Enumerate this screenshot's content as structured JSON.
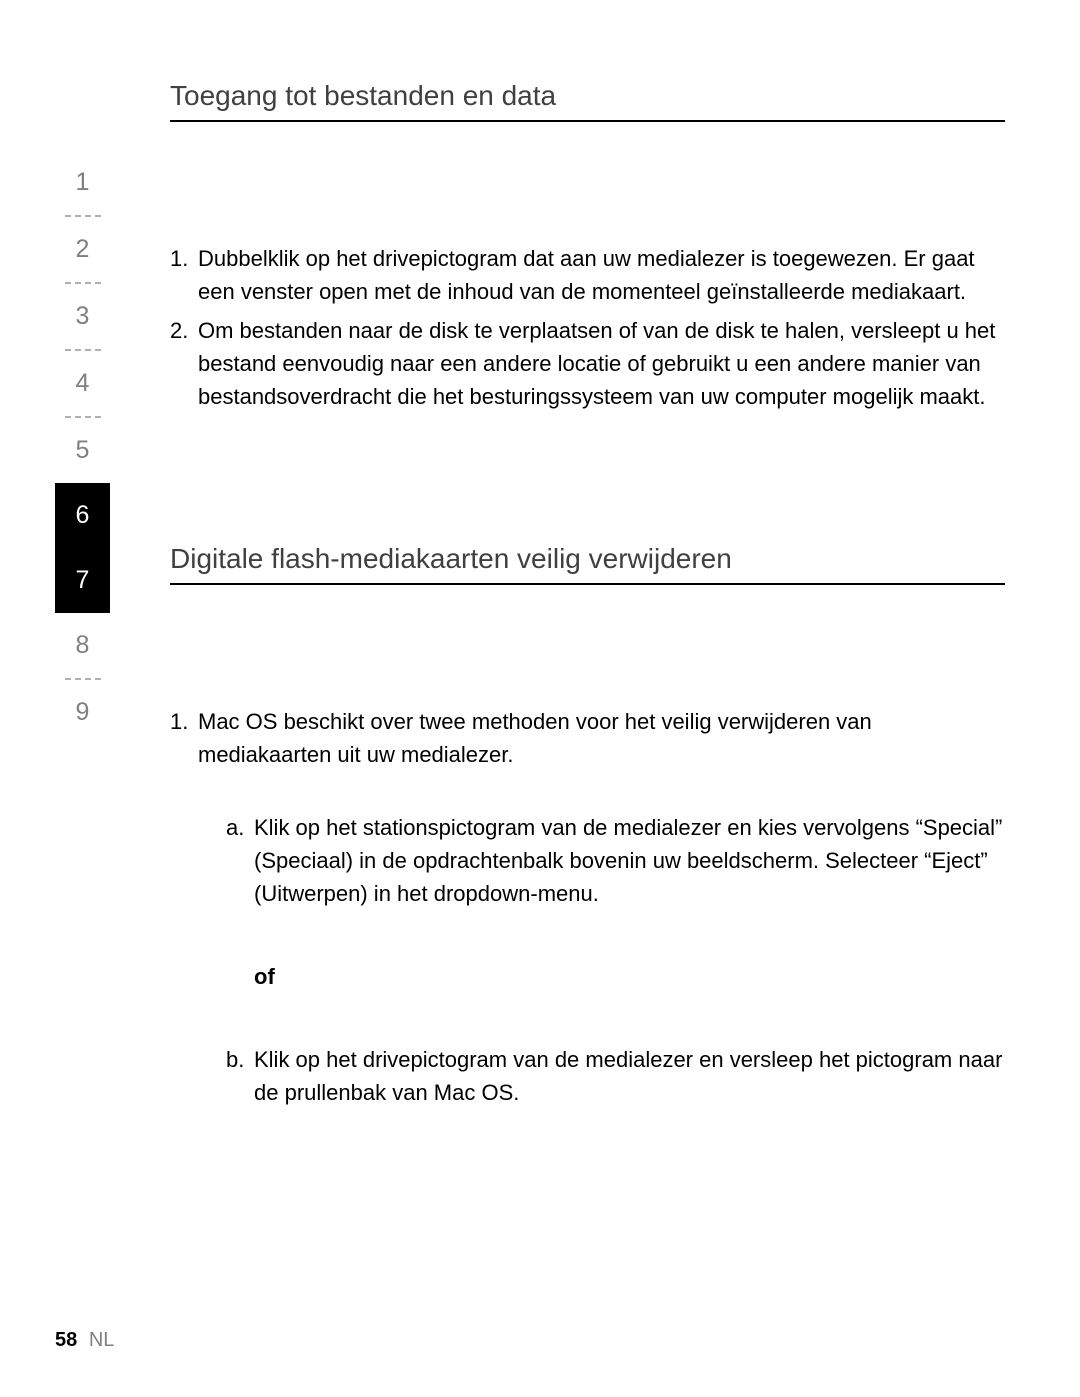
{
  "sidebar": {
    "items": [
      {
        "label": "1",
        "selected": false
      },
      {
        "label": "2",
        "selected": false
      },
      {
        "label": "3",
        "selected": false
      },
      {
        "label": "4",
        "selected": false
      },
      {
        "label": "5",
        "selected": false
      },
      {
        "label": "6",
        "selected": true
      },
      {
        "label": "7",
        "selected": true
      },
      {
        "label": "8",
        "selected": false
      },
      {
        "label": "9",
        "selected": false
      }
    ]
  },
  "section1": {
    "title": "Toegang tot bestanden en data",
    "items": [
      "Dubbelklik op het drivepictogram dat aan uw medialezer is toegewezen. Er gaat een venster open met de inhoud van de momenteel geïnstalleerde mediakaart.",
      "Om bestanden naar de disk te verplaatsen of van de disk te halen, versleept u het bestand eenvoudig naar een andere locatie of gebruikt u een andere manier van bestandsoverdracht die het besturingssysteem van uw computer mogelijk maakt."
    ]
  },
  "section2": {
    "title": "Digitale flash-mediakaarten veilig verwijderen",
    "intro": "Mac OS beschikt over twee methoden voor het veilig verwijderen van mediakaarten uit uw medialezer.",
    "sub_a": "Klik op het stationspictogram van de medialezer en kies vervolgens “Special” (Speciaal) in de opdrachtenbalk bovenin uw beeldscherm. Selecteer “Eject” (Uitwerpen) in het dropdown-menu.",
    "of_label": "of",
    "sub_b": "Klik op het drivepictogram van de medialezer en versleep het pictogram naar de prullenbak van Mac OS."
  },
  "footer": {
    "page": "58",
    "lang": "NL"
  }
}
